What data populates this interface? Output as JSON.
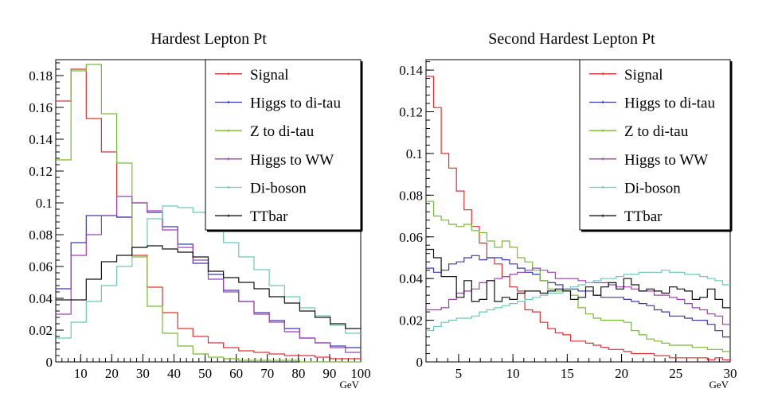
{
  "chart_data": [
    {
      "type": "line",
      "title": "Hardest Lepton Pt",
      "xunit": "GeV",
      "xlim": [
        2,
        100
      ],
      "ylim": [
        0,
        0.19
      ],
      "xticks": [
        10,
        20,
        30,
        40,
        50,
        60,
        70,
        80,
        90,
        100
      ],
      "xtick_labels": [
        "10",
        "20",
        "30",
        "40",
        "50",
        "60",
        "70",
        "80",
        "90",
        "100"
      ],
      "yticks": [
        0,
        0.02,
        0.04,
        0.06,
        0.08,
        0.1,
        0.12,
        0.14,
        0.16,
        0.18
      ],
      "ytick_labels": [
        "0",
        "0.02",
        "0.04",
        "0.06",
        "0.08",
        "0.1",
        "0.12",
        "0.14",
        "0.16",
        "0.18"
      ],
      "legend": "top-right",
      "bin_edges": [
        2,
        6.9,
        11.8,
        16.7,
        21.6,
        26.5,
        31.4,
        36.3,
        41.2,
        46.1,
        51,
        55.9,
        60.8,
        65.7,
        70.6,
        75.5,
        80.4,
        85.3,
        90.2,
        95.1,
        100
      ],
      "series": [
        {
          "name": "Signal",
          "color": "#e03030",
          "values": [
            0.164,
            0.184,
            0.153,
            0.132,
            0.091,
            0.067,
            0.047,
            0.031,
            0.021,
            0.016,
            0.012,
            0.009,
            0.007,
            0.006,
            0.005,
            0.004,
            0.004,
            0.003,
            0.002,
            0.002
          ]
        },
        {
          "name": "Higgs to di-tau",
          "color": "#3a3ab0",
          "values": [
            0.046,
            0.075,
            0.092,
            0.092,
            0.091,
            0.1,
            0.094,
            0.085,
            0.074,
            0.062,
            0.055,
            0.045,
            0.038,
            0.031,
            0.026,
            0.021,
            0.015,
            0.012,
            0.01,
            0.009
          ]
        },
        {
          "name": "Z to di-tau",
          "color": "#77bb33",
          "values": [
            0.127,
            0.183,
            0.187,
            0.156,
            0.125,
            0.066,
            0.035,
            0.018,
            0.01,
            0.005,
            0.003,
            0.002,
            0.001,
            0.001,
            0.001,
            0.001,
            0.0,
            0.0,
            0.0,
            0.0
          ]
        },
        {
          "name": "Higgs to WW",
          "color": "#a040b0",
          "values": [
            0.03,
            0.067,
            0.08,
            0.092,
            0.104,
            0.1,
            0.095,
            0.083,
            0.072,
            0.064,
            0.052,
            0.044,
            0.038,
            0.03,
            0.025,
            0.019,
            0.015,
            0.012,
            0.009,
            0.006
          ]
        },
        {
          "name": "Di-boson",
          "color": "#6cc8b8",
          "values": [
            0.015,
            0.025,
            0.038,
            0.048,
            0.06,
            0.072,
            0.09,
            0.098,
            0.097,
            0.094,
            0.085,
            0.075,
            0.066,
            0.058,
            0.048,
            0.041,
            0.034,
            0.029,
            0.023,
            0.018
          ]
        },
        {
          "name": "TTbar",
          "color": "#111111",
          "values": [
            0.039,
            0.039,
            0.052,
            0.063,
            0.067,
            0.072,
            0.073,
            0.071,
            0.069,
            0.066,
            0.057,
            0.053,
            0.05,
            0.046,
            0.041,
            0.037,
            0.032,
            0.028,
            0.024,
            0.021
          ]
        }
      ]
    },
    {
      "type": "line",
      "title": "Second Hardest Lepton Pt",
      "xunit": "GeV",
      "xlim": [
        2,
        30
      ],
      "ylim": [
        0,
        0.145
      ],
      "xticks": [
        5,
        10,
        15,
        20,
        25,
        30
      ],
      "xtick_labels": [
        "5",
        "10",
        "15",
        "20",
        "25",
        "30"
      ],
      "yticks": [
        0,
        0.02,
        0.04,
        0.06,
        0.08,
        0.1,
        0.12,
        0.14
      ],
      "ytick_labels": [
        "0",
        "0.02",
        "0.04",
        "0.06",
        "0.08",
        "0.1",
        "0.12",
        "0.14"
      ],
      "legend": "top-right",
      "bin_edges": [
        2,
        2.7,
        3.4,
        4.1,
        4.8,
        5.5,
        6.2,
        6.9,
        7.6,
        8.3,
        9,
        9.7,
        10.4,
        11.1,
        11.8,
        12.5,
        13.2,
        13.9,
        14.6,
        15.3,
        16,
        16.7,
        17.4,
        18.1,
        18.8,
        19.5,
        20.2,
        20.9,
        21.6,
        22.3,
        23,
        23.7,
        24.4,
        25.1,
        25.8,
        26.5,
        27.2,
        27.9,
        28.6,
        29.3,
        30
      ],
      "series": [
        {
          "name": "Signal",
          "color": "#e03030",
          "values": [
            0.137,
            0.122,
            0.1,
            0.093,
            0.082,
            0.073,
            0.065,
            0.057,
            0.05,
            0.047,
            0.041,
            0.036,
            0.034,
            0.025,
            0.024,
            0.019,
            0.016,
            0.014,
            0.013,
            0.01,
            0.01,
            0.009,
            0.008,
            0.007,
            0.006,
            0.006,
            0.005,
            0.004,
            0.004,
            0.004,
            0.003,
            0.003,
            0.002,
            0.002,
            0.002,
            0.002,
            0.002,
            0.001,
            0.002,
            0.001
          ]
        },
        {
          "name": "Higgs to di-tau",
          "color": "#3a3ab0",
          "values": [
            0.045,
            0.043,
            0.044,
            0.047,
            0.048,
            0.05,
            0.051,
            0.049,
            0.05,
            0.05,
            0.049,
            0.047,
            0.045,
            0.043,
            0.042,
            0.039,
            0.038,
            0.037,
            0.035,
            0.035,
            0.034,
            0.034,
            0.032,
            0.031,
            0.031,
            0.031,
            0.03,
            0.029,
            0.028,
            0.027,
            0.025,
            0.024,
            0.022,
            0.022,
            0.021,
            0.02,
            0.02,
            0.018,
            0.015,
            0.012
          ]
        },
        {
          "name": "Z to di-tau",
          "color": "#77bb33",
          "values": [
            0.077,
            0.07,
            0.068,
            0.066,
            0.065,
            0.066,
            0.063,
            0.062,
            0.058,
            0.055,
            0.058,
            0.055,
            0.05,
            0.048,
            0.044,
            0.039,
            0.035,
            0.034,
            0.034,
            0.032,
            0.026,
            0.023,
            0.021,
            0.02,
            0.02,
            0.02,
            0.019,
            0.015,
            0.013,
            0.011,
            0.01,
            0.009,
            0.008,
            0.008,
            0.008,
            0.007,
            0.007,
            0.006,
            0.006,
            0.005
          ]
        },
        {
          "name": "Higgs to WW",
          "color": "#a040b0",
          "values": [
            0.025,
            0.025,
            0.026,
            0.03,
            0.033,
            0.034,
            0.035,
            0.038,
            0.039,
            0.04,
            0.041,
            0.042,
            0.043,
            0.044,
            0.045,
            0.044,
            0.043,
            0.04,
            0.04,
            0.04,
            0.039,
            0.038,
            0.038,
            0.038,
            0.037,
            0.036,
            0.036,
            0.035,
            0.034,
            0.034,
            0.032,
            0.032,
            0.031,
            0.03,
            0.028,
            0.026,
            0.025,
            0.023,
            0.022,
            0.018
          ]
        },
        {
          "name": "Di-boson",
          "color": "#6cc8b8",
          "values": [
            0.015,
            0.017,
            0.019,
            0.02,
            0.021,
            0.021,
            0.022,
            0.024,
            0.025,
            0.026,
            0.027,
            0.028,
            0.029,
            0.03,
            0.031,
            0.032,
            0.033,
            0.033,
            0.034,
            0.036,
            0.037,
            0.038,
            0.039,
            0.04,
            0.04,
            0.041,
            0.042,
            0.042,
            0.043,
            0.043,
            0.043,
            0.044,
            0.043,
            0.043,
            0.042,
            0.042,
            0.041,
            0.04,
            0.039,
            0.037
          ]
        },
        {
          "name": "TTbar",
          "color": "#111111",
          "values": [
            0.054,
            0.05,
            0.041,
            0.041,
            0.031,
            0.039,
            0.029,
            0.03,
            0.039,
            0.029,
            0.031,
            0.03,
            0.033,
            0.034,
            0.034,
            0.033,
            0.034,
            0.035,
            0.034,
            0.03,
            0.031,
            0.036,
            0.032,
            0.036,
            0.038,
            0.035,
            0.04,
            0.037,
            0.034,
            0.035,
            0.034,
            0.033,
            0.036,
            0.035,
            0.034,
            0.03,
            0.031,
            0.035,
            0.03,
            0.026
          ]
        }
      ]
    }
  ]
}
